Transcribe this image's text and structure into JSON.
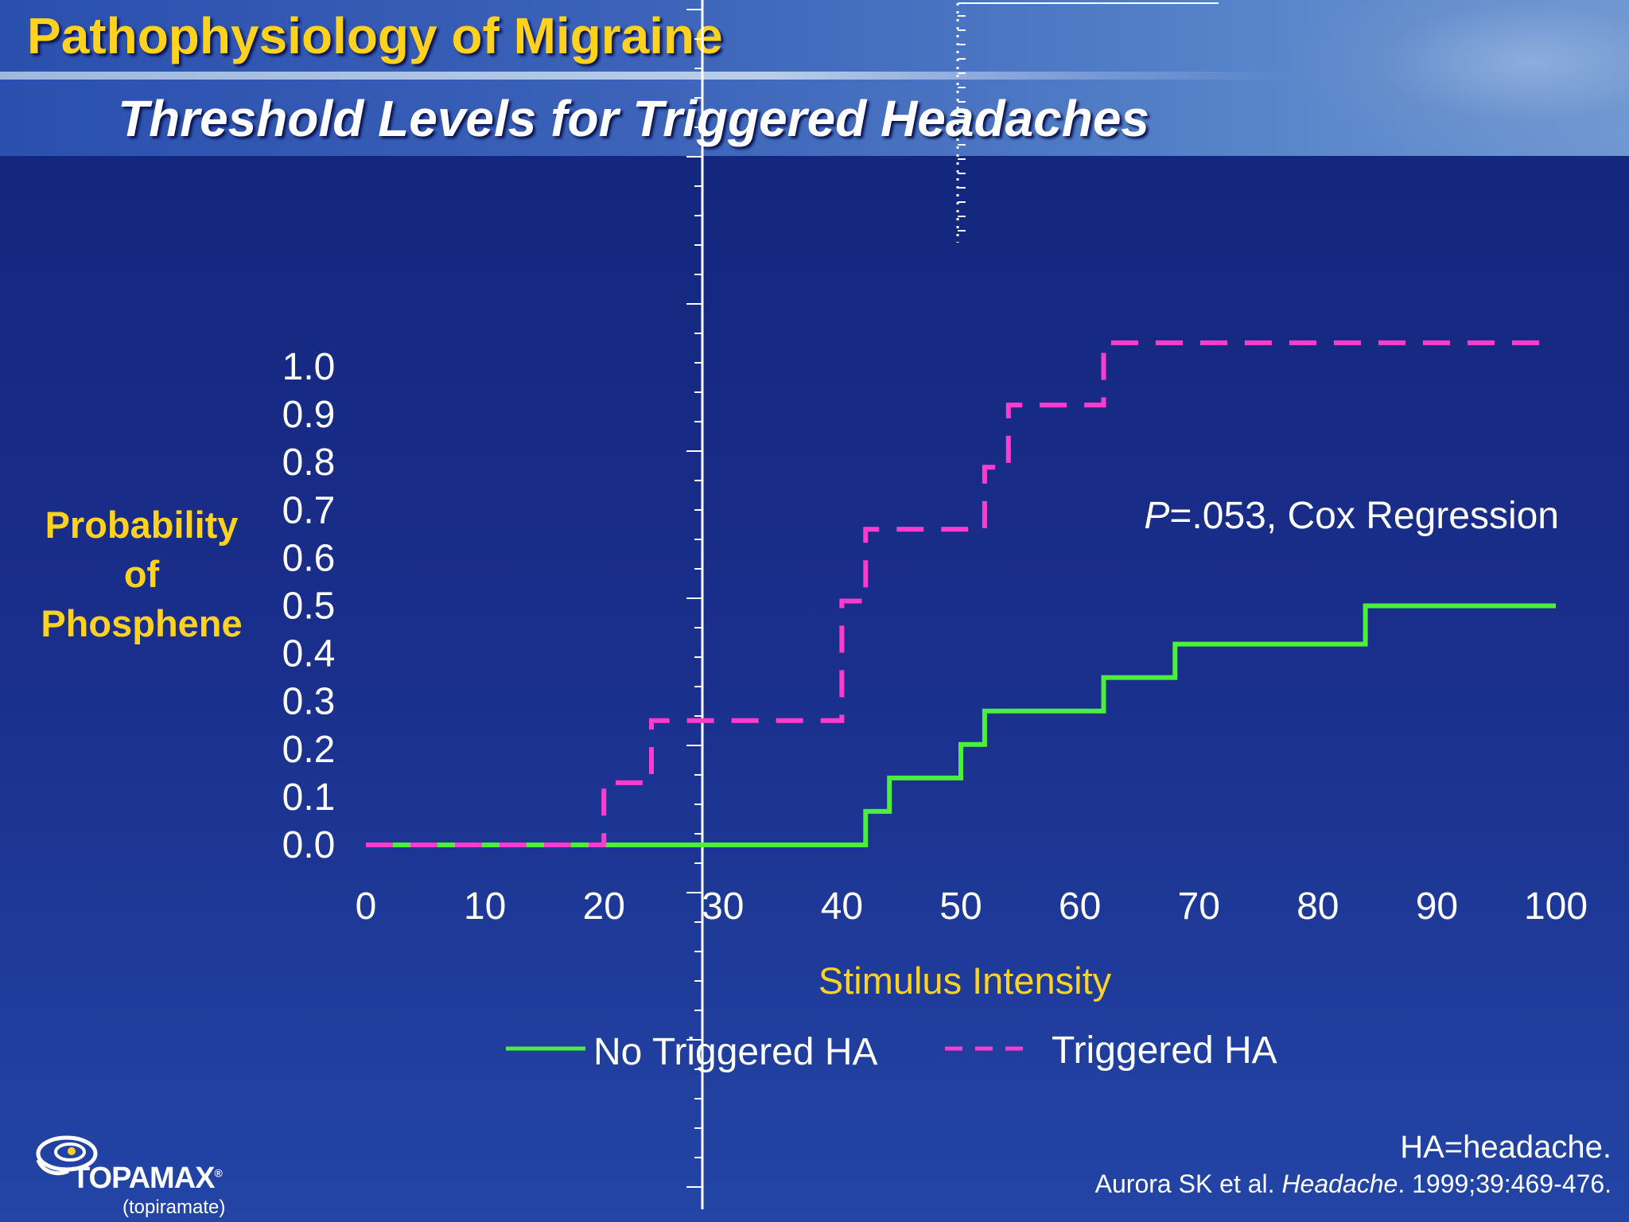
{
  "slide": {
    "title": "Pathophysiology of Migraine",
    "subtitle": "Threshold Levels for Triggered Headaches"
  },
  "chart_data": {
    "type": "line",
    "step": true,
    "xlabel": "Stimulus Intensity",
    "ylabel_lines": [
      "Probability",
      "of",
      "Phosphene"
    ],
    "xlim": [
      0,
      100
    ],
    "ylim": [
      0.0,
      1.0
    ],
    "x_ticks": [
      "0",
      "10",
      "20",
      "30",
      "40",
      "50",
      "60",
      "70",
      "80",
      "90",
      "100"
    ],
    "y_ticks": [
      "0.0",
      "0.1",
      "0.2",
      "0.3",
      "0.4",
      "0.5",
      "0.6",
      "0.7",
      "0.8",
      "0.9",
      "1.0"
    ],
    "grid": false,
    "legend_position": "bottom",
    "annotation": {
      "italic": "P",
      "rest": "=.053, Cox Regression"
    },
    "series": [
      {
        "name": "No Triggered HA",
        "color": "#4cf03c",
        "dash": "solid",
        "points": [
          [
            0,
            0.0
          ],
          [
            42,
            0.0
          ],
          [
            42,
            0.07
          ],
          [
            44,
            0.07
          ],
          [
            44,
            0.14
          ],
          [
            50,
            0.14
          ],
          [
            50,
            0.21
          ],
          [
            52,
            0.21
          ],
          [
            52,
            0.28
          ],
          [
            62,
            0.28
          ],
          [
            62,
            0.35
          ],
          [
            68,
            0.35
          ],
          [
            68,
            0.42
          ],
          [
            84,
            0.42
          ],
          [
            84,
            0.5
          ],
          [
            100,
            0.5
          ]
        ]
      },
      {
        "name": "Triggered HA",
        "color": "#ff3ccd",
        "dash": "dashed",
        "points": [
          [
            0,
            0.0
          ],
          [
            20,
            0.0
          ],
          [
            20,
            0.13
          ],
          [
            24,
            0.13
          ],
          [
            24,
            0.26
          ],
          [
            40,
            0.26
          ],
          [
            40,
            0.51
          ],
          [
            42,
            0.51
          ],
          [
            42,
            0.66
          ],
          [
            52,
            0.66
          ],
          [
            52,
            0.79
          ],
          [
            54,
            0.79
          ],
          [
            54,
            0.92
          ],
          [
            62,
            0.92
          ],
          [
            62,
            1.05
          ],
          [
            100,
            1.05
          ]
        ]
      }
    ]
  },
  "footnotes": {
    "abbreviation": "HA=headache.",
    "reference_prefix": "Aurora SK et al. ",
    "reference_journal": "Headache",
    "reference_suffix": ". 1999;39:469-476."
  },
  "logo": {
    "brand": "TOPAMAX",
    "registered": "®",
    "generic": "(topiramate)"
  },
  "colors": {
    "title": "#ffd21f",
    "background": "#1a2f8c",
    "header": "#3c63b9"
  }
}
